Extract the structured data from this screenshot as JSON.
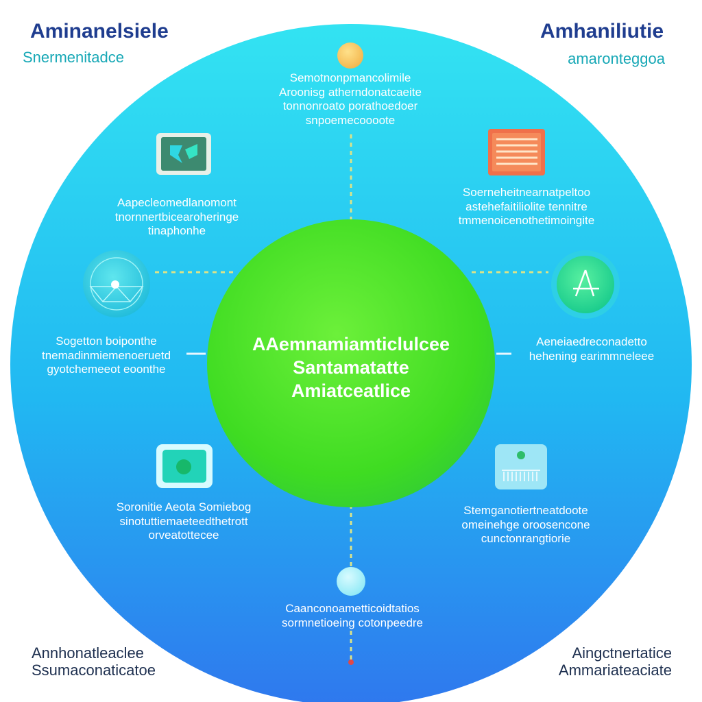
{
  "colors": {
    "outer_circle_top": "#2ee0f0",
    "outer_circle_bottom": "#2d7af0",
    "center_circle": "#3fe02a",
    "connector_yellow": "#d9e38a",
    "title_blue": "#1f3d8f",
    "subtitle_teal": "#17a8b6"
  },
  "corners": {
    "top_left": {
      "title": "Aminanelsiele",
      "subtitle": "Snermenitadce"
    },
    "top_right": {
      "title": "Amhaniliutie",
      "subtitle": "amaronteggoa"
    },
    "bottom_left": {
      "lines": [
        "Annhonatleaclee",
        "Ssumaconaticatoe"
      ]
    },
    "bottom_right": {
      "lines": [
        "Aingctnertatice",
        "Ammariateaciate"
      ]
    }
  },
  "center": {
    "lines": [
      "AAemnamiamticlulcee",
      "Santamatatte",
      "Amiatceatlice"
    ]
  },
  "nodes": {
    "top": {
      "icon": "orange-dot-icon",
      "lines": [
        "Semotnonpmancolimile",
        "Aroonisg atherndonatcaeite",
        "tonnonroato porathoedoer",
        "snpoemecoooote"
      ]
    },
    "upper_left": {
      "icon": "folder-shapes-icon",
      "lines": [
        "Aapecleomedlanomont",
        "tnornnertbicearoheringe",
        "tinaphonhe"
      ]
    },
    "upper_right": {
      "icon": "document-lines-icon",
      "lines": [
        "Soerneheitnearnatpeltoo",
        "astehefaitiliolite tennitre",
        "tmmenoicenothetimoingite"
      ]
    },
    "left": {
      "icon": "radar-dial-icon",
      "lines": [
        "Sogetton boiponthe",
        "tnemadinmiemenoeruetd",
        "gyotchemeeot eoonthe"
      ]
    },
    "right": {
      "icon": "compass-tool-icon",
      "lines": [
        "Aeneiaedreconadetto",
        "hehening earimmneleee"
      ]
    },
    "lower_left": {
      "icon": "screen-dot-icon",
      "lines": [
        "Soronitie Aeota Somiebog",
        "sinotuttiemaeteedthetrott",
        "orveatottecee"
      ]
    },
    "lower_right": {
      "icon": "device-bars-icon",
      "lines": [
        "Stemganotiertneatdoote",
        "omeinehge oroosencone",
        "cunctonrangtiorie"
      ]
    },
    "bottom": {
      "icon": "light-dot-icon",
      "lines": [
        "Caanconoametticoidtatios",
        "sormnetioeing cotonpeedre"
      ]
    }
  }
}
